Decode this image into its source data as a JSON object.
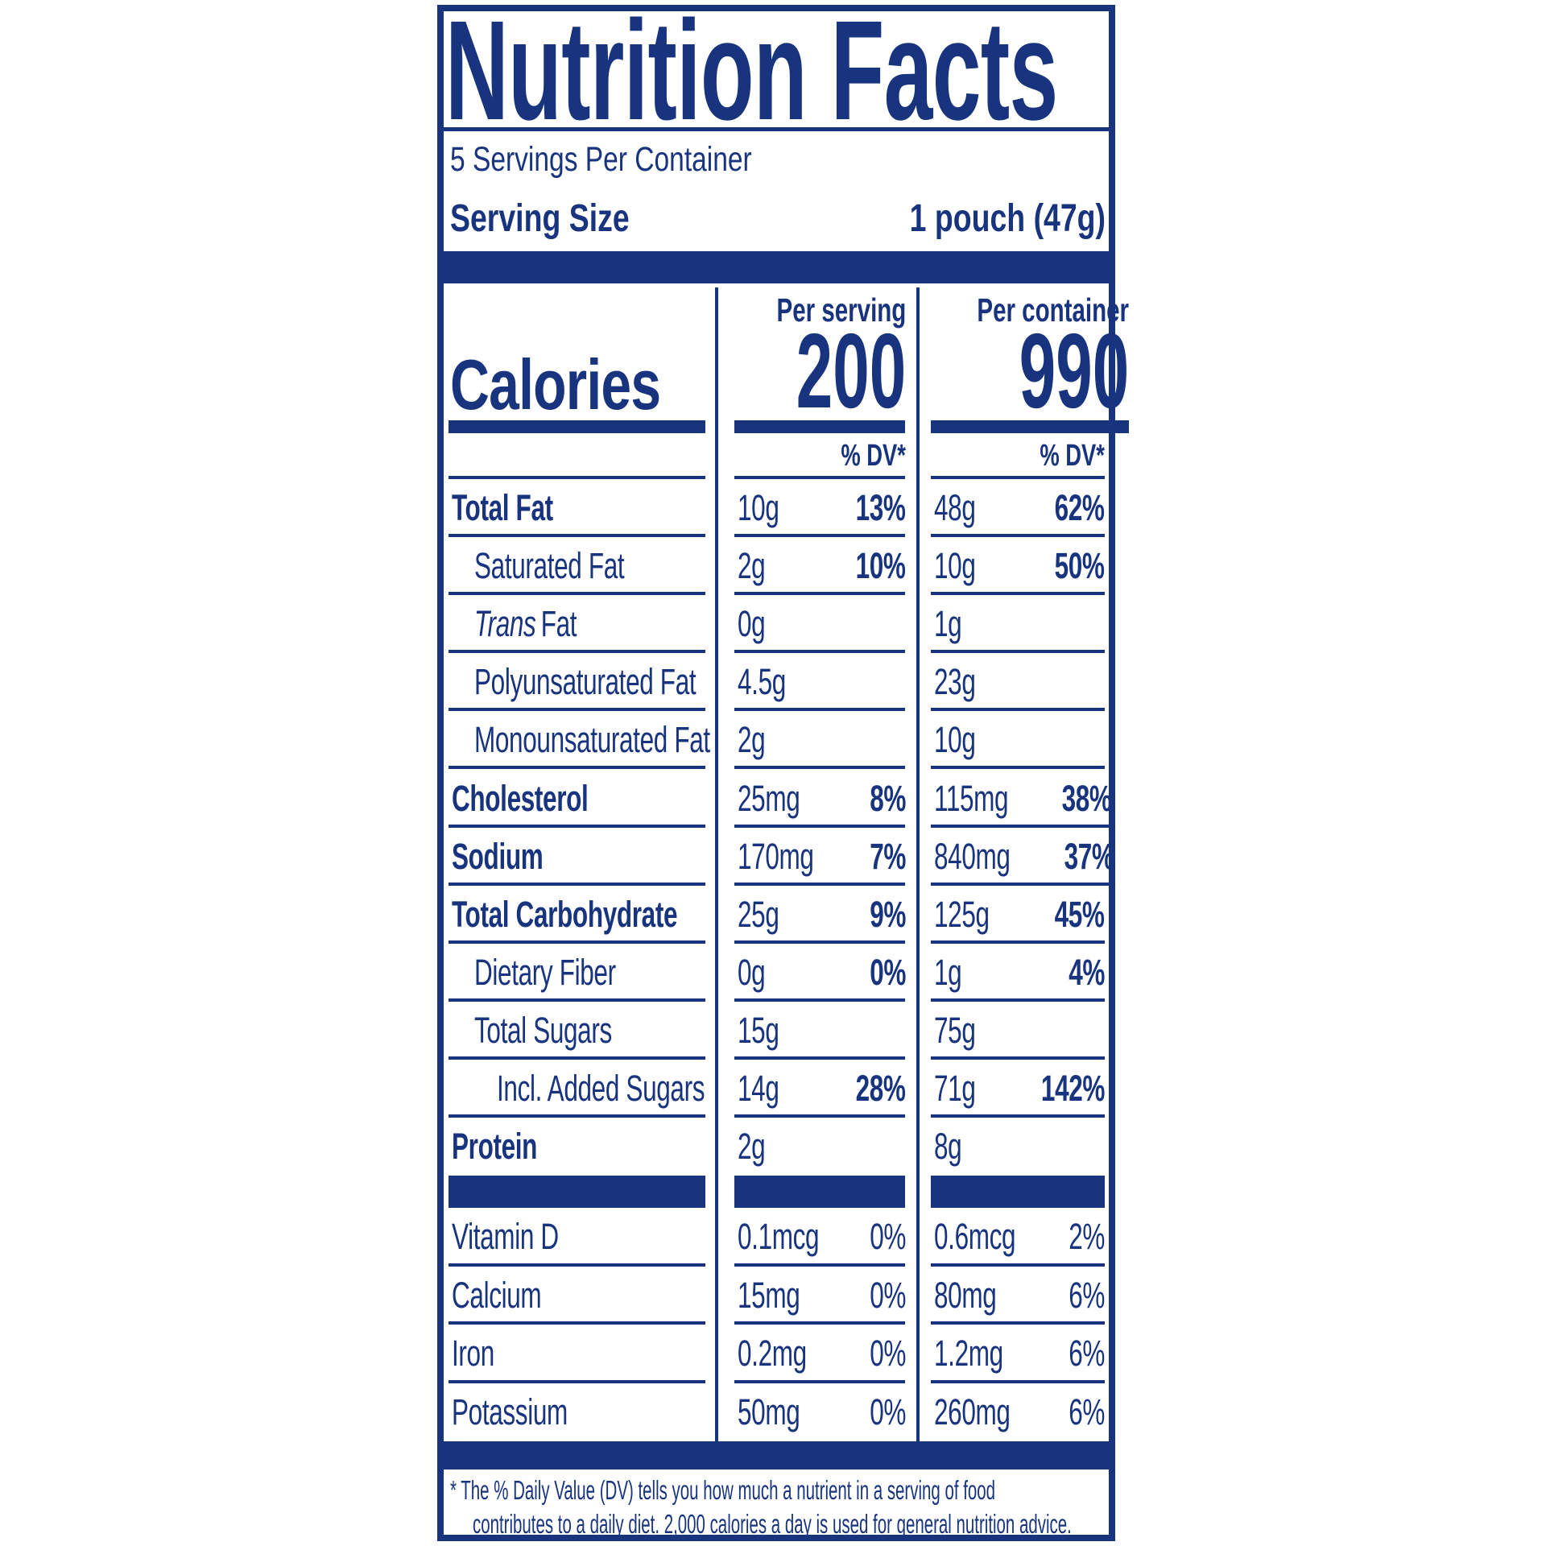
{
  "colors": {
    "navy": "#18347E",
    "background": "#ffffff"
  },
  "label": {
    "title": "Nutrition Facts",
    "servings_per_container": "5 Servings Per Container",
    "serving_size": {
      "label": "Serving Size",
      "value": "1 pouch (47g)"
    },
    "calories": {
      "label": "Calories",
      "columns": [
        {
          "header": "Per serving",
          "value": "200"
        },
        {
          "header": "Per container",
          "value": "990"
        }
      ],
      "dv_header": "% DV*"
    },
    "nutrients": [
      {
        "name": "Total Fat",
        "bold": true,
        "indent": 0,
        "per_serving": {
          "amount": "10g",
          "dv": "13%"
        },
        "per_container": {
          "amount": "48g",
          "dv": "62%"
        }
      },
      {
        "name": "Saturated Fat",
        "bold": false,
        "indent": 1,
        "per_serving": {
          "amount": "2g",
          "dv": "10%"
        },
        "per_container": {
          "amount": "10g",
          "dv": "50%"
        }
      },
      {
        "name_italic": "Trans",
        "name": "Fat",
        "bold": false,
        "indent": 1,
        "per_serving": {
          "amount": "0g",
          "dv": ""
        },
        "per_container": {
          "amount": "1g",
          "dv": ""
        }
      },
      {
        "name": "Polyunsaturated Fat",
        "bold": false,
        "indent": 1,
        "per_serving": {
          "amount": "4.5g",
          "dv": ""
        },
        "per_container": {
          "amount": "23g",
          "dv": ""
        }
      },
      {
        "name": "Monounsaturated Fat",
        "bold": false,
        "indent": 1,
        "per_serving": {
          "amount": "2g",
          "dv": ""
        },
        "per_container": {
          "amount": "10g",
          "dv": ""
        }
      },
      {
        "name": "Cholesterol",
        "bold": true,
        "indent": 0,
        "per_serving": {
          "amount": "25mg",
          "dv": "8%"
        },
        "per_container": {
          "amount": "115mg",
          "dv": "38%"
        }
      },
      {
        "name": "Sodium",
        "bold": true,
        "indent": 0,
        "per_serving": {
          "amount": "170mg",
          "dv": "7%"
        },
        "per_container": {
          "amount": "840mg",
          "dv": "37%"
        }
      },
      {
        "name": "Total Carbohydrate",
        "bold": true,
        "indent": 0,
        "per_serving": {
          "amount": "25g",
          "dv": "9%"
        },
        "per_container": {
          "amount": "125g",
          "dv": "45%"
        }
      },
      {
        "name": "Dietary Fiber",
        "bold": false,
        "indent": 1,
        "per_serving": {
          "amount": "0g",
          "dv": "0%"
        },
        "per_container": {
          "amount": "1g",
          "dv": "4%"
        }
      },
      {
        "name": "Total Sugars",
        "bold": false,
        "indent": 1,
        "sep_indent": true,
        "per_serving": {
          "amount": "15g",
          "dv": ""
        },
        "per_container": {
          "amount": "75g",
          "dv": ""
        }
      },
      {
        "name": "Incl. Added Sugars",
        "bold": false,
        "indent": 2,
        "per_serving": {
          "amount": "14g",
          "dv": "28%"
        },
        "per_container": {
          "amount": "71g",
          "dv": "142%"
        }
      },
      {
        "name": "Protein",
        "bold": true,
        "indent": 0,
        "per_serving": {
          "amount": "2g",
          "dv": ""
        },
        "per_container": {
          "amount": "8g",
          "dv": ""
        }
      }
    ],
    "vitamins": [
      {
        "name": "Vitamin D",
        "per_serving": {
          "amount": "0.1mcg",
          "dv": "0%"
        },
        "per_container": {
          "amount": "0.6mcg",
          "dv": "2%"
        }
      },
      {
        "name": "Calcium",
        "per_serving": {
          "amount": "15mg",
          "dv": "0%"
        },
        "per_container": {
          "amount": "80mg",
          "dv": "6%"
        }
      },
      {
        "name": "Iron",
        "per_serving": {
          "amount": "0.2mg",
          "dv": "0%"
        },
        "per_container": {
          "amount": "1.2mg",
          "dv": "6%"
        }
      },
      {
        "name": "Potassium",
        "per_serving": {
          "amount": "50mg",
          "dv": "0%"
        },
        "per_container": {
          "amount": "260mg",
          "dv": "6%"
        }
      }
    ],
    "footnote": {
      "line1": "* The % Daily Value (DV) tells you how much a nutrient in a serving of food",
      "line2": "contributes to a daily diet. 2,000 calories a day is used for general nutrition advice."
    }
  }
}
